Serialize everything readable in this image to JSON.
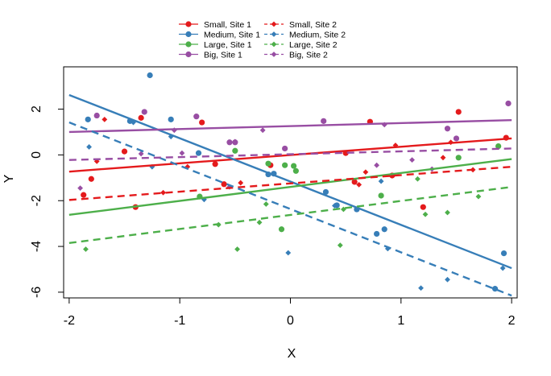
{
  "chart_data": {
    "type": "scatter",
    "title": "",
    "xlabel": "X",
    "ylabel": "Y",
    "xlim": [
      -2.05,
      2.05
    ],
    "ylim": [
      -6.25,
      3.85
    ],
    "xticks": [
      "-2",
      "-1",
      "0",
      "1",
      "2"
    ],
    "xtick_values": [
      -2,
      -1,
      0,
      1,
      2
    ],
    "yticks": [
      "-6",
      "-4",
      "-2",
      "0",
      "2"
    ],
    "ytick_values": [
      -6,
      -4,
      -2,
      0,
      2
    ],
    "grid": false,
    "legend_position": "top",
    "series": [
      {
        "name": "Small, Site 1",
        "color": "#e41a1c",
        "marker": "circle",
        "line": "solid",
        "fit": [
          [
            -2,
            -0.73
          ],
          [
            2,
            0.72
          ]
        ],
        "points": [
          [
            -1.87,
            -1.75
          ],
          [
            -1.8,
            -1.05
          ],
          [
            -1.5,
            0.15
          ],
          [
            -1.4,
            -2.28
          ],
          [
            -1.35,
            1.62
          ],
          [
            -0.8,
            1.42
          ],
          [
            -0.68,
            -0.4
          ],
          [
            -0.6,
            -1.28
          ],
          [
            -0.18,
            -0.45
          ],
          [
            0.5,
            0.08
          ],
          [
            0.58,
            -1.18
          ],
          [
            0.72,
            1.45
          ],
          [
            0.92,
            -0.9
          ],
          [
            1.2,
            -2.28
          ],
          [
            1.52,
            1.88
          ],
          [
            1.95,
            0.75
          ]
        ]
      },
      {
        "name": "Medium, Site 1",
        "color": "#377eb8",
        "marker": "circle",
        "line": "solid",
        "fit": [
          [
            -2,
            2.62
          ],
          [
            2,
            -4.95
          ]
        ],
        "points": [
          [
            -1.83,
            1.55
          ],
          [
            -1.45,
            1.48
          ],
          [
            -1.27,
            3.48
          ],
          [
            -1.08,
            1.55
          ],
          [
            -0.83,
            0.08
          ],
          [
            -0.2,
            -0.85
          ],
          [
            -0.15,
            -0.82
          ],
          [
            0.32,
            -1.62
          ],
          [
            0.42,
            -2.2
          ],
          [
            0.6,
            -2.38
          ],
          [
            0.78,
            -3.45
          ],
          [
            0.85,
            -3.25
          ],
          [
            1.85,
            -5.85
          ],
          [
            1.93,
            -4.3
          ]
        ]
      },
      {
        "name": "Large, Site 1",
        "color": "#4daf4a",
        "marker": "circle",
        "line": "solid",
        "fit": [
          [
            -2,
            -2.62
          ],
          [
            2,
            -0.18
          ]
        ],
        "points": [
          [
            -0.82,
            -1.82
          ],
          [
            -0.5,
            0.18
          ],
          [
            -0.2,
            -0.38
          ],
          [
            -0.08,
            -3.25
          ],
          [
            -0.05,
            -0.45
          ],
          [
            0.03,
            -0.48
          ],
          [
            0.05,
            -0.7
          ],
          [
            0.82,
            -1.78
          ],
          [
            1.52,
            -0.12
          ],
          [
            1.88,
            0.38
          ]
        ]
      },
      {
        "name": "Big, Site 1",
        "color": "#984ea3",
        "marker": "circle",
        "line": "solid",
        "fit": [
          [
            -2,
            1.0
          ],
          [
            2,
            1.52
          ]
        ],
        "points": [
          [
            -1.75,
            1.72
          ],
          [
            -1.32,
            1.88
          ],
          [
            -0.85,
            1.68
          ],
          [
            -0.55,
            0.55
          ],
          [
            -0.5,
            0.55
          ],
          [
            -0.05,
            0.28
          ],
          [
            0.3,
            1.48
          ],
          [
            1.42,
            1.15
          ],
          [
            1.5,
            0.72
          ],
          [
            1.97,
            2.25
          ]
        ]
      },
      {
        "name": "Small, Site 2",
        "color": "#e41a1c",
        "marker": "diamond",
        "line": "dashed",
        "fit": [
          [
            -2,
            -1.97
          ],
          [
            2,
            -0.52
          ]
        ],
        "points": [
          [
            -1.75,
            -0.28
          ],
          [
            -1.68,
            1.55
          ],
          [
            -1.15,
            -1.65
          ],
          [
            -0.93,
            -0.52
          ],
          [
            -0.45,
            -1.22
          ],
          [
            0.62,
            -1.3
          ],
          [
            0.68,
            -0.75
          ],
          [
            0.95,
            0.42
          ],
          [
            1.38,
            -0.12
          ],
          [
            1.45,
            0.55
          ],
          [
            1.65,
            -0.65
          ]
        ]
      },
      {
        "name": "Medium, Site 2",
        "color": "#377eb8",
        "marker": "diamond",
        "line": "dashed",
        "fit": [
          [
            -2,
            1.42
          ],
          [
            2,
            -6.15
          ]
        ],
        "points": [
          [
            -1.82,
            0.35
          ],
          [
            -1.42,
            1.42
          ],
          [
            -1.25,
            -0.52
          ],
          [
            -1.08,
            0.8
          ],
          [
            -0.78,
            -1.95
          ],
          [
            -0.02,
            -4.28
          ],
          [
            0.4,
            -2.22
          ],
          [
            0.82,
            -1.15
          ],
          [
            0.88,
            -4.1
          ],
          [
            1.18,
            -5.82
          ],
          [
            1.42,
            -5.45
          ],
          [
            1.92,
            -4.95
          ]
        ]
      },
      {
        "name": "Large, Site 2",
        "color": "#4daf4a",
        "marker": "diamond",
        "line": "dashed",
        "fit": [
          [
            -2,
            -3.85
          ],
          [
            2,
            -1.4
          ]
        ],
        "points": [
          [
            -1.85,
            -4.12
          ],
          [
            -0.65,
            -3.05
          ],
          [
            -0.48,
            -4.12
          ],
          [
            -0.28,
            -2.95
          ],
          [
            -0.22,
            -2.15
          ],
          [
            0.45,
            -3.95
          ],
          [
            0.48,
            -2.38
          ],
          [
            1.15,
            -1.05
          ],
          [
            1.22,
            -2.6
          ],
          [
            1.42,
            -2.52
          ],
          [
            1.7,
            -1.82
          ]
        ]
      },
      {
        "name": "Big, Site 2",
        "color": "#984ea3",
        "marker": "diamond",
        "line": "dashed",
        "fit": [
          [
            -2,
            -0.22
          ],
          [
            2,
            0.28
          ]
        ],
        "points": [
          [
            -1.9,
            -1.45
          ],
          [
            -1.35,
            0.05
          ],
          [
            -1.05,
            1.08
          ],
          [
            -0.98,
            0.08
          ],
          [
            -0.55,
            -1.4
          ],
          [
            -0.5,
            0.58
          ],
          [
            -0.25,
            1.08
          ],
          [
            0.78,
            -0.45
          ],
          [
            0.85,
            1.32
          ],
          [
            1.1,
            -0.22
          ],
          [
            1.28,
            -0.62
          ]
        ]
      }
    ]
  }
}
